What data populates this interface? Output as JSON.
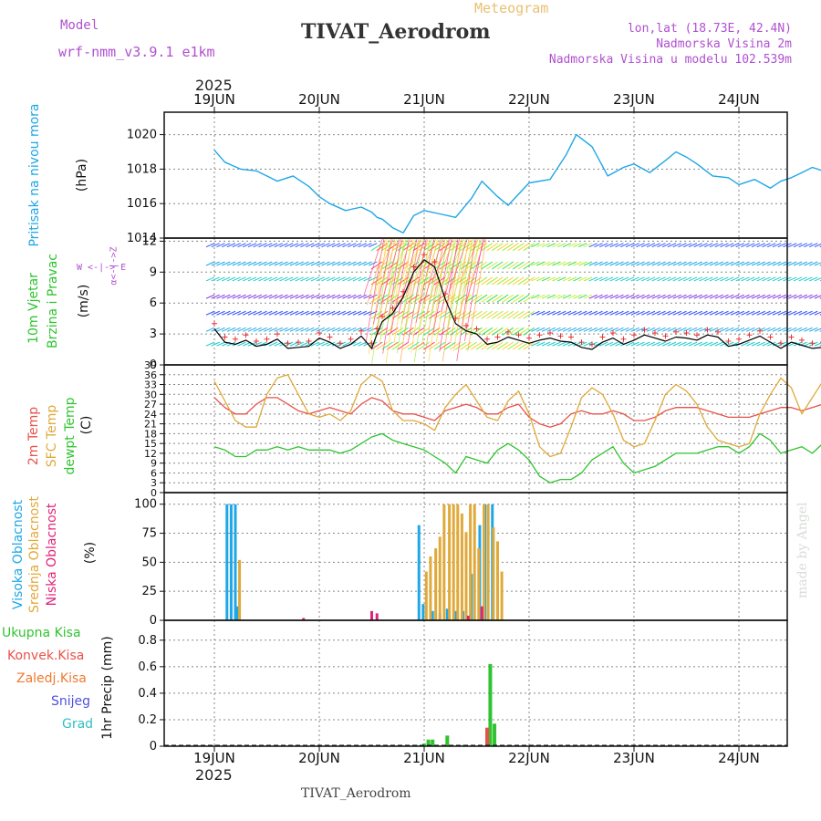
{
  "header": {
    "model_label": "Model",
    "model_name": "wrf-nmm_v3.9.1 e1km",
    "meteogram_label": "Meteogram",
    "station_title": "TIVAT_Aerodrom",
    "lonlat": "lon,lat (18.73E, 42.4N)",
    "elevation": "Nadmorska Visina 2m",
    "model_elevation": "Nadmorska Visina u modelu 102.539m",
    "credit": "made by Angel",
    "footer_station": "TIVAT_Aerodrom",
    "year_top": "2025",
    "year_bottom": "2025"
  },
  "colors": {
    "pressure": "#1ea7e6",
    "temp2m": "#e8524a",
    "sfc_temp": "#e0a93a",
    "dewpt": "#2fc42f",
    "high_cloud": "#1ea7e6",
    "mid_cloud": "#e0a93a",
    "low_cloud": "#e0247a",
    "total_precip": "#2fc42f",
    "conv_precip": "#e8524a",
    "frozen_precip": "#f07a30",
    "snow": "#5050e0",
    "graupel": "#30c0c0",
    "title": "#333333",
    "purple": "#b050d0",
    "gold": "#e8c070"
  },
  "days": [
    "19JUN",
    "20JUN",
    "21JUN",
    "22JUN",
    "23JUN",
    "24JUN"
  ],
  "panel_labels": {
    "pressure": {
      "name": "Pritisak na nivou mora",
      "unit": "(hPa)"
    },
    "wind": {
      "name1": "10m Vjetar",
      "name2": "Brzina i Pravac",
      "unit": "(m/s)",
      "compass_ns": "α<-|->Z",
      "compass_we": "W  <-|->  E"
    },
    "temp": {
      "t2m": "2m Temp",
      "sfc": "SFC Temp",
      "dew": "dewpt Temp",
      "unit": "(C)"
    },
    "cloud": {
      "high": "Visoka Oblacnost",
      "mid": "Srednja Oblacnost",
      "low": "Niska Oblacnost",
      "unit": "(%)"
    },
    "precip": {
      "total": "Ukupna Kisa",
      "conv": "Konvek.Kisa",
      "frozen": "Zaledj.Kisa",
      "snow": "Snijeg",
      "graupel": "Grad",
      "axis": "1hr Precip (mm)"
    }
  },
  "chart_data": [
    {
      "type": "line",
      "name": "pressure",
      "ylabel": "(hPa)",
      "ylim": [
        1014,
        1021.3
      ],
      "yticks": [
        1014,
        1016,
        1018,
        1020
      ],
      "x_days": [
        0,
        0.1,
        0.25,
        0.4,
        0.5,
        0.6,
        0.75,
        0.9,
        1.0,
        1.1,
        1.25,
        1.4,
        1.5,
        1.55,
        1.6,
        1.7,
        1.8,
        1.9,
        2.0,
        2.15,
        2.3,
        2.45,
        2.55,
        2.7,
        2.8,
        3.0,
        3.2,
        3.35,
        3.45,
        3.6,
        3.75,
        3.9,
        4.0,
        4.15,
        4.3,
        4.4,
        4.5,
        4.6,
        4.75,
        4.9,
        5.0,
        5.15,
        5.3,
        5.4,
        5.5,
        5.6,
        5.7,
        5.85
      ],
      "values": [
        1019.1,
        1018.4,
        1018.0,
        1017.9,
        1017.6,
        1017.3,
        1017.6,
        1017.0,
        1016.4,
        1016.0,
        1015.6,
        1015.8,
        1015.5,
        1015.2,
        1015.1,
        1014.6,
        1014.3,
        1015.3,
        1015.6,
        1015.4,
        1015.2,
        1016.3,
        1017.3,
        1016.4,
        1015.9,
        1017.2,
        1017.4,
        1018.8,
        1020.0,
        1019.3,
        1017.6,
        1018.1,
        1018.3,
        1017.8,
        1018.5,
        1019.0,
        1018.7,
        1018.3,
        1017.6,
        1017.5,
        1017.1,
        1017.4,
        1016.9,
        1017.3,
        1017.5,
        1017.8,
        1018.1,
        1017.8
      ]
    },
    {
      "type": "line",
      "name": "wind",
      "ylabel": "(m/s)",
      "ylim": [
        0,
        12.3
      ],
      "yticks": [
        0,
        3,
        6,
        9,
        12
      ],
      "x_days": [
        0,
        0.1,
        0.2,
        0.3,
        0.4,
        0.5,
        0.6,
        0.7,
        0.8,
        0.9,
        1.0,
        1.1,
        1.2,
        1.3,
        1.4,
        1.5,
        1.55,
        1.6,
        1.7,
        1.8,
        1.9,
        2.0,
        2.1,
        2.2,
        2.3,
        2.4,
        2.5,
        2.6,
        2.7,
        2.8,
        2.9,
        3.0,
        3.1,
        3.2,
        3.3,
        3.4,
        3.5,
        3.6,
        3.7,
        3.8,
        3.9,
        4.0,
        4.1,
        4.2,
        4.3,
        4.4,
        4.5,
        4.6,
        4.7,
        4.8,
        4.9,
        5.0,
        5.1,
        5.2,
        5.3,
        5.4,
        5.5,
        5.6,
        5.7,
        5.8,
        5.85
      ],
      "values": [
        3.5,
        2.2,
        2.0,
        2.4,
        1.8,
        2.0,
        2.5,
        1.6,
        1.7,
        1.8,
        2.6,
        2.2,
        1.6,
        2.0,
        2.8,
        1.6,
        3.0,
        4.2,
        5.0,
        6.6,
        9.0,
        10.2,
        9.5,
        6.4,
        4.0,
        3.3,
        3.0,
        2.0,
        2.2,
        2.7,
        2.4,
        2.1,
        2.4,
        2.6,
        2.3,
        2.2,
        1.7,
        1.5,
        2.2,
        2.6,
        2.0,
        2.4,
        2.9,
        2.6,
        2.3,
        2.7,
        2.6,
        2.4,
        2.9,
        2.7,
        1.8,
        2.0,
        2.4,
        2.8,
        2.2,
        1.6,
        2.2,
        1.9,
        1.6,
        1.7,
        2.0
      ]
    },
    {
      "type": "line",
      "name": "temperature",
      "ylabel": "(C)",
      "ylim": [
        0,
        39
      ],
      "yticks": [
        0,
        3,
        6,
        9,
        12,
        15,
        18,
        21,
        24,
        27,
        30,
        33,
        36,
        39
      ],
      "x_days": [
        0,
        0.1,
        0.2,
        0.3,
        0.4,
        0.5,
        0.6,
        0.7,
        0.8,
        0.9,
        1.0,
        1.1,
        1.2,
        1.3,
        1.4,
        1.5,
        1.6,
        1.7,
        1.8,
        1.9,
        2.0,
        2.1,
        2.2,
        2.3,
        2.4,
        2.5,
        2.6,
        2.7,
        2.8,
        2.9,
        3.0,
        3.1,
        3.2,
        3.3,
        3.4,
        3.5,
        3.6,
        3.7,
        3.8,
        3.9,
        4.0,
        4.1,
        4.2,
        4.3,
        4.4,
        4.5,
        4.6,
        4.7,
        4.8,
        4.9,
        5.0,
        5.1,
        5.2,
        5.3,
        5.4,
        5.5,
        5.6,
        5.7,
        5.8,
        5.85
      ],
      "series": [
        {
          "name": "2m Temp",
          "color_key": "temp2m",
          "values": [
            29,
            26,
            24,
            24,
            27,
            29,
            29,
            27,
            25,
            24,
            25,
            26,
            25,
            24,
            27,
            29,
            28,
            25,
            24,
            24,
            23,
            22,
            25,
            26,
            27,
            26,
            24,
            24,
            26,
            27,
            23,
            21,
            20,
            21,
            24,
            25,
            24,
            24,
            25,
            24,
            22,
            22,
            23,
            25,
            26,
            26,
            26,
            25,
            24,
            23,
            23,
            23,
            24,
            25,
            26,
            26,
            25,
            26,
            27,
            27
          ]
        },
        {
          "name": "SFC Temp",
          "color_key": "sfc_temp",
          "values": [
            34,
            28,
            22,
            20,
            20,
            30,
            35,
            36,
            30,
            24,
            23,
            24,
            22,
            25,
            33,
            36,
            34,
            25,
            22,
            22,
            21,
            19,
            26,
            30,
            33,
            28,
            23,
            22,
            28,
            31,
            24,
            14,
            11,
            12,
            20,
            29,
            32,
            30,
            24,
            16,
            14,
            15,
            22,
            30,
            33,
            31,
            27,
            20,
            16,
            15,
            14,
            15,
            24,
            30,
            35,
            32,
            24,
            29,
            34,
            34
          ]
        },
        {
          "name": "dewpt Temp",
          "color_key": "dewpt",
          "values": [
            14,
            13,
            11,
            11,
            13,
            13,
            14,
            13,
            14,
            13,
            13,
            13,
            12,
            13,
            15,
            17,
            18,
            16,
            15,
            14,
            13,
            11,
            9,
            6,
            11,
            10,
            9,
            13,
            15,
            13,
            10,
            5,
            3,
            4,
            4,
            6,
            10,
            12,
            14,
            9,
            6,
            7,
            8,
            10,
            12,
            12,
            12,
            13,
            14,
            14,
            12,
            14,
            18,
            16,
            12,
            13,
            14,
            12,
            15,
            15
          ]
        }
      ]
    },
    {
      "type": "bar",
      "name": "cloud_cover",
      "ylabel": "(%)",
      "ylim": [
        0,
        110
      ],
      "yticks": [
        0,
        25,
        50,
        75,
        100
      ],
      "series": [
        {
          "name": "Visoka Oblacnost",
          "color_key": "high_cloud",
          "x_days": [
            0.12,
            0.16,
            0.2,
            0.22,
            1.95,
            1.99,
            2.08,
            2.15,
            2.22,
            2.3,
            2.37,
            2.45,
            2.53,
            2.58,
            2.65
          ],
          "values": [
            100,
            100,
            100,
            12,
            82,
            14,
            8,
            6,
            10,
            8,
            8,
            40,
            82,
            100,
            100
          ]
        },
        {
          "name": "Srednja Oblacnost",
          "color_key": "mid_cloud",
          "x_days": [
            0.24,
            2.02,
            2.06,
            2.11,
            2.15,
            2.19,
            2.24,
            2.28,
            2.32,
            2.36,
            2.4,
            2.44,
            2.48,
            2.52,
            2.57,
            2.61,
            2.66,
            2.7,
            2.74
          ],
          "values": [
            52,
            42,
            55,
            62,
            72,
            100,
            100,
            100,
            100,
            92,
            76,
            100,
            100,
            62,
            100,
            100,
            80,
            68,
            42
          ]
        },
        {
          "name": "Niska Oblacnost",
          "color_key": "low_cloud",
          "x_days": [
            0.85,
            1.5,
            1.55,
            2.42,
            2.55
          ],
          "values": [
            2,
            8,
            6,
            4,
            12
          ]
        }
      ]
    },
    {
      "type": "bar",
      "name": "precipitation",
      "ylabel": "1hr Precip (mm)",
      "ylim": [
        0,
        0.95
      ],
      "yticks": [
        0,
        0.2,
        0.4,
        0.6,
        0.8
      ],
      "series": [
        {
          "name": "Ukupna Kisa",
          "color_key": "total_precip",
          "x_days": [
            1.92,
            2.0,
            2.04,
            2.08,
            2.12,
            2.22,
            2.38,
            2.63,
            2.67
          ],
          "values": [
            0.01,
            0.02,
            0.05,
            0.05,
            0.01,
            0.08,
            0.01,
            0.62,
            0.17
          ]
        },
        {
          "name": "Konvek.Kisa",
          "color_key": "conv_precip",
          "x_days": [
            2.6
          ],
          "values": [
            0.14
          ]
        }
      ]
    }
  ]
}
